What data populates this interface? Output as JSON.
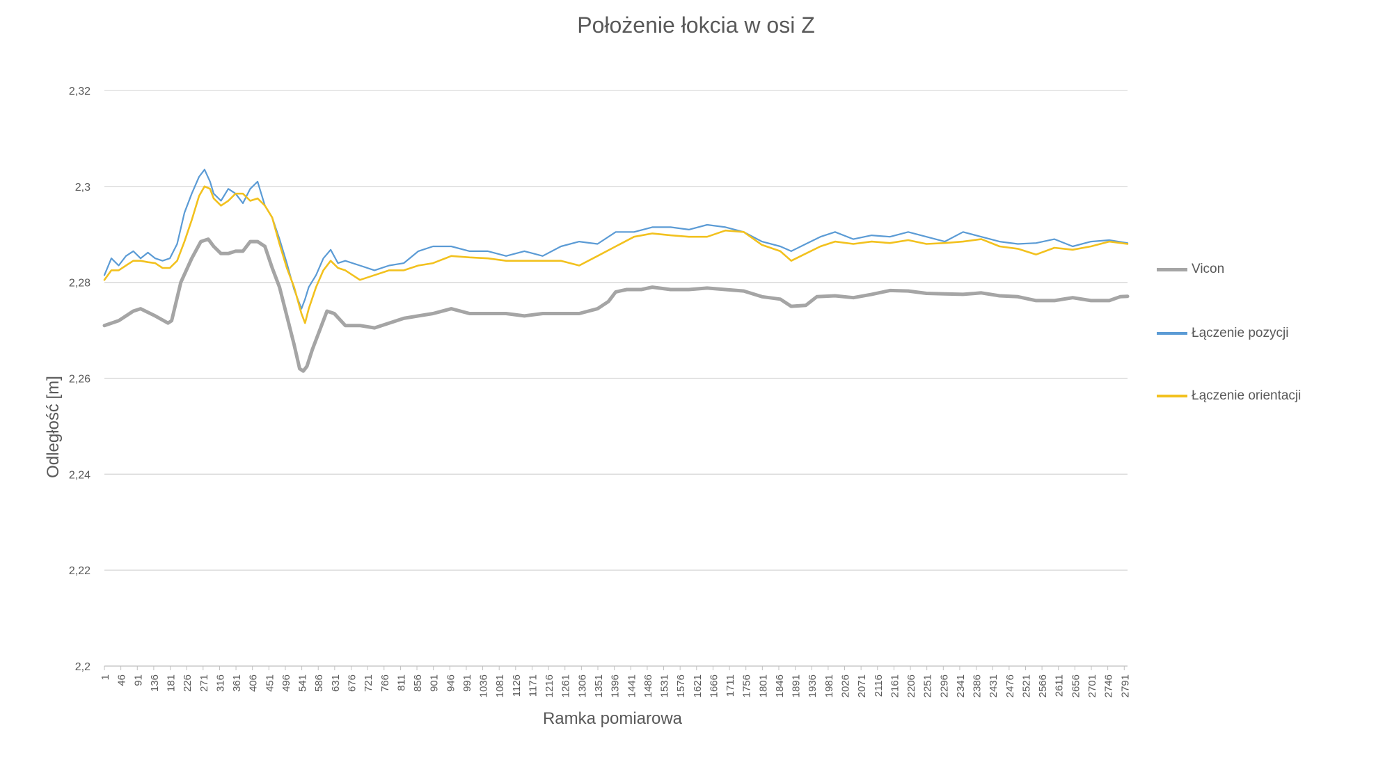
{
  "chart_data": {
    "type": "line",
    "title": "Położenie łokcia w osi Z",
    "xlabel": "Ramka pomiarowa",
    "ylabel": "Odległość [m]",
    "ylim": [
      2.2,
      2.32
    ],
    "y_ticks": [
      "2,2",
      "2,22",
      "2,24",
      "2,26",
      "2,28",
      "2,3",
      "2,32"
    ],
    "y_tick_values": [
      2.2,
      2.22,
      2.24,
      2.26,
      2.28,
      2.3,
      2.32
    ],
    "x_ticks": [
      "1",
      "46",
      "91",
      "136",
      "181",
      "226",
      "271",
      "316",
      "361",
      "406",
      "451",
      "496",
      "541",
      "586",
      "631",
      "676",
      "721",
      "766",
      "811",
      "856",
      "901",
      "946",
      "991",
      "1036",
      "1081",
      "1126",
      "1171",
      "1216",
      "1261",
      "1306",
      "1351",
      "1396",
      "1441",
      "1486",
      "1531",
      "1576",
      "1621",
      "1666",
      "1711",
      "1756",
      "1801",
      "1846",
      "1891",
      "1936",
      "1981",
      "2026",
      "2071",
      "2116",
      "2161",
      "2206",
      "2251",
      "2296",
      "2341",
      "2386",
      "2431",
      "2476",
      "2521",
      "2566",
      "2611",
      "2656",
      "2701",
      "2746",
      "2791"
    ],
    "xlim": [
      1,
      2800
    ],
    "grid": "horizontal",
    "legend_position": "right",
    "series": [
      {
        "name": "Vicon",
        "color": "#a5a5a5",
        "x": [
          1,
          40,
          80,
          100,
          140,
          175,
          185,
          210,
          240,
          265,
          285,
          300,
          320,
          340,
          360,
          380,
          400,
          420,
          440,
          460,
          480,
          500,
          520,
          535,
          545,
          555,
          570,
          590,
          610,
          630,
          660,
          700,
          740,
          780,
          820,
          860,
          900,
          950,
          1000,
          1050,
          1100,
          1150,
          1200,
          1250,
          1300,
          1350,
          1380,
          1400,
          1430,
          1470,
          1500,
          1550,
          1600,
          1650,
          1700,
          1750,
          1800,
          1850,
          1880,
          1920,
          1950,
          2000,
          2050,
          2100,
          2150,
          2200,
          2250,
          2300,
          2350,
          2400,
          2450,
          2500,
          2550,
          2600,
          2650,
          2700,
          2750,
          2780,
          2800
        ],
        "y": [
          2.271,
          2.272,
          2.274,
          2.2745,
          2.273,
          2.2715,
          2.272,
          2.28,
          2.285,
          2.2885,
          2.289,
          2.2875,
          2.286,
          2.286,
          2.2865,
          2.2865,
          2.2885,
          2.2885,
          2.2875,
          2.283,
          2.279,
          2.273,
          2.267,
          2.262,
          2.2615,
          2.2625,
          2.266,
          2.27,
          2.274,
          2.2735,
          2.271,
          2.271,
          2.2705,
          2.2715,
          2.2725,
          2.273,
          2.2735,
          2.2745,
          2.2735,
          2.2735,
          2.2735,
          2.273,
          2.2735,
          2.2735,
          2.2735,
          2.2745,
          2.276,
          2.278,
          2.2785,
          2.2785,
          2.279,
          2.2785,
          2.2785,
          2.2788,
          2.2785,
          2.2782,
          2.277,
          2.2765,
          2.275,
          2.2752,
          2.277,
          2.2772,
          2.2768,
          2.2775,
          2.2783,
          2.2782,
          2.2777,
          2.2776,
          2.2775,
          2.2778,
          2.2772,
          2.277,
          2.2762,
          2.2762,
          2.2768,
          2.2762,
          2.2762,
          2.277,
          2.2771
        ]
      },
      {
        "name": "Łączenie pozycji",
        "color": "#5b9bd5",
        "x": [
          1,
          20,
          40,
          60,
          80,
          100,
          120,
          140,
          160,
          180,
          200,
          220,
          240,
          260,
          275,
          290,
          300,
          320,
          340,
          360,
          380,
          400,
          420,
          440,
          460,
          480,
          500,
          520,
          540,
          550,
          560,
          580,
          600,
          620,
          640,
          660,
          700,
          740,
          780,
          820,
          860,
          900,
          950,
          1000,
          1050,
          1100,
          1150,
          1200,
          1250,
          1300,
          1350,
          1400,
          1450,
          1500,
          1550,
          1600,
          1650,
          1700,
          1750,
          1800,
          1850,
          1880,
          1920,
          1960,
          2000,
          2050,
          2100,
          2150,
          2200,
          2250,
          2300,
          2350,
          2400,
          2450,
          2500,
          2550,
          2600,
          2650,
          2700,
          2750,
          2800
        ],
        "y": [
          2.2815,
          2.285,
          2.2835,
          2.2855,
          2.2865,
          2.285,
          2.2862,
          2.285,
          2.2845,
          2.285,
          2.288,
          2.2945,
          2.2985,
          2.302,
          2.3035,
          2.301,
          2.2985,
          2.297,
          2.2995,
          2.2985,
          2.2965,
          2.2995,
          2.301,
          2.296,
          2.2935,
          2.289,
          2.284,
          2.2785,
          2.2745,
          2.2765,
          2.279,
          2.2815,
          2.285,
          2.2868,
          2.284,
          2.2845,
          2.2835,
          2.2825,
          2.2835,
          2.284,
          2.2865,
          2.2875,
          2.2875,
          2.2865,
          2.2865,
          2.2855,
          2.2865,
          2.2855,
          2.2875,
          2.2885,
          2.288,
          2.2905,
          2.2905,
          2.2915,
          2.2915,
          2.291,
          2.292,
          2.2915,
          2.2905,
          2.2885,
          2.2875,
          2.2865,
          2.288,
          2.2895,
          2.2905,
          2.289,
          2.2898,
          2.2895,
          2.2905,
          2.2895,
          2.2885,
          2.2905,
          2.2895,
          2.2885,
          2.288,
          2.2882,
          2.289,
          2.2875,
          2.2885,
          2.2888,
          2.2882
        ]
      },
      {
        "name": "Łączenie orientacji",
        "color": "#f2c11e",
        "x": [
          1,
          20,
          40,
          60,
          80,
          100,
          120,
          140,
          160,
          180,
          200,
          220,
          240,
          260,
          275,
          290,
          300,
          320,
          340,
          360,
          380,
          400,
          420,
          440,
          460,
          480,
          500,
          520,
          540,
          550,
          560,
          580,
          600,
          620,
          640,
          660,
          700,
          740,
          780,
          820,
          860,
          900,
          950,
          1000,
          1050,
          1100,
          1150,
          1200,
          1250,
          1300,
          1350,
          1400,
          1450,
          1500,
          1550,
          1600,
          1650,
          1700,
          1750,
          1800,
          1850,
          1880,
          1920,
          1960,
          2000,
          2050,
          2100,
          2150,
          2200,
          2250,
          2300,
          2350,
          2400,
          2450,
          2500,
          2550,
          2600,
          2650,
          2700,
          2750,
          2800
        ],
        "y": [
          2.2805,
          2.2825,
          2.2825,
          2.2835,
          2.2845,
          2.2845,
          2.2842,
          2.284,
          2.283,
          2.283,
          2.2845,
          2.2885,
          2.293,
          2.298,
          2.3,
          2.2995,
          2.2975,
          2.296,
          2.297,
          2.2985,
          2.2985,
          2.297,
          2.2975,
          2.296,
          2.2935,
          2.288,
          2.283,
          2.279,
          2.2735,
          2.2715,
          2.2745,
          2.279,
          2.2825,
          2.2845,
          2.283,
          2.2825,
          2.2805,
          2.2815,
          2.2825,
          2.2825,
          2.2835,
          2.284,
          2.2855,
          2.2852,
          2.285,
          2.2845,
          2.2845,
          2.2845,
          2.2845,
          2.2835,
          2.2855,
          2.2875,
          2.2895,
          2.2902,
          2.2898,
          2.2895,
          2.2895,
          2.2908,
          2.2905,
          2.2878,
          2.2865,
          2.2845,
          2.286,
          2.2875,
          2.2885,
          2.288,
          2.2885,
          2.2882,
          2.2888,
          2.288,
          2.2882,
          2.2885,
          2.289,
          2.2875,
          2.287,
          2.2858,
          2.2872,
          2.2868,
          2.2875,
          2.2885,
          2.288
        ]
      }
    ]
  }
}
